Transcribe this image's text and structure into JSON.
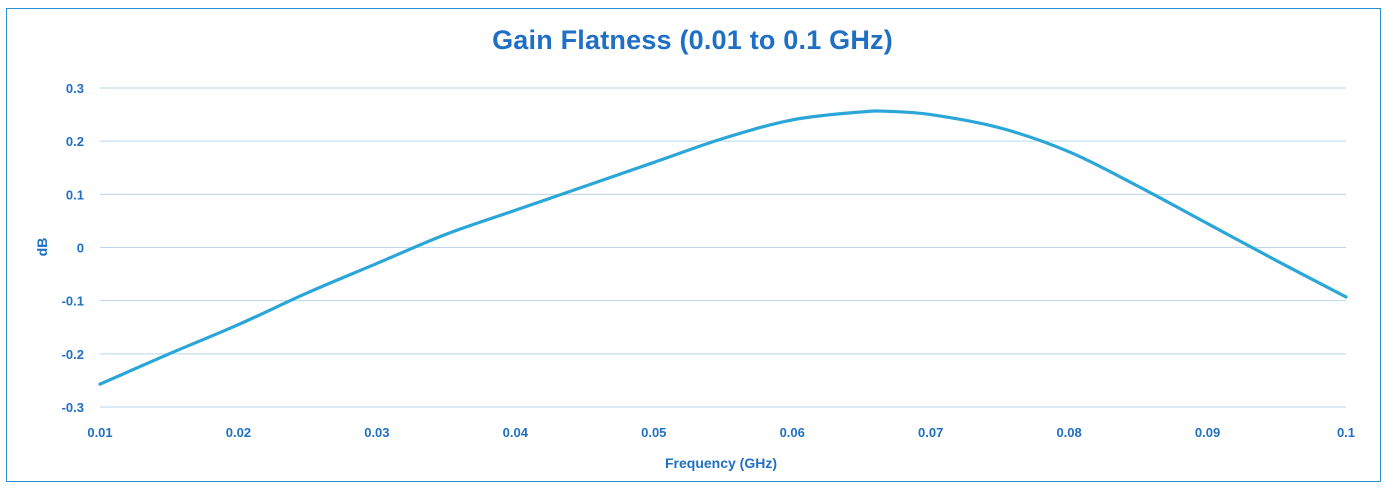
{
  "colors": {
    "line": "#2aa6d8",
    "text": "#1f6fc4",
    "grid": "#b9d6ee",
    "frame": "#2a8fd0"
  },
  "chart_data": {
    "type": "line",
    "title": "Gain Flatness (0.01 to 0.1 GHz)",
    "xlabel": "Frequency (GHz)",
    "ylabel": "dB",
    "xlim": [
      0.01,
      0.1
    ],
    "ylim": [
      -0.3,
      0.3
    ],
    "grid": true,
    "x_ticks": [
      "0.01",
      "0.02",
      "0.03",
      "0.04",
      "0.05",
      "0.06",
      "0.07",
      "0.08",
      "0.09",
      "0.1"
    ],
    "y_ticks": [
      "0.3",
      "0.2",
      "0.1",
      "0",
      "-0.1",
      "-0.2",
      "-0.3"
    ],
    "series": [
      {
        "x": [
          0.01,
          0.015,
          0.02,
          0.025,
          0.03,
          0.035,
          0.04,
          0.045,
          0.05,
          0.055,
          0.06,
          0.065,
          0.067,
          0.07,
          0.075,
          0.08,
          0.085,
          0.09,
          0.095,
          0.1
        ],
        "values": [
          -0.257,
          -0.2,
          -0.145,
          -0.085,
          -0.03,
          0.025,
          0.07,
          0.115,
          0.16,
          0.205,
          0.24,
          0.255,
          0.256,
          0.25,
          0.225,
          0.18,
          0.115,
          0.045,
          -0.025,
          -0.093
        ]
      }
    ]
  }
}
